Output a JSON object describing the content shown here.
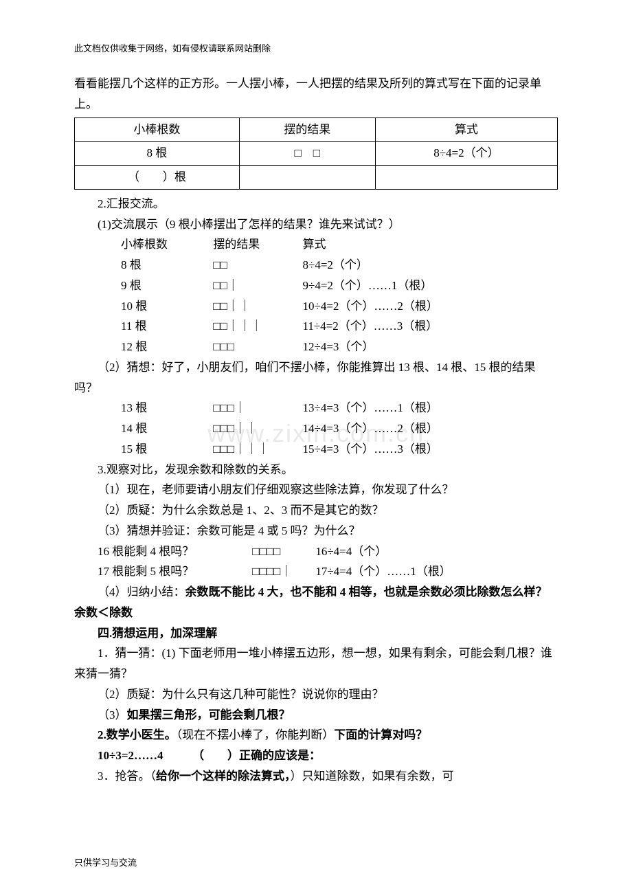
{
  "header_note": "此文档仅供收集于网络，如有侵权请联系网站删除",
  "footer_note": "只供学习与交流",
  "watermark": "www.zixin.com.cn",
  "intro_lines": [
    "看看能摆几个这样的正方形。一人摆小棒，一人把摆的结果及所列的算式写在下面的记录单上。"
  ],
  "record_table": {
    "headers": [
      "小棒根数",
      "摆的结果",
      "算式"
    ],
    "rows": [
      [
        "8 根",
        "□　□",
        "8÷4=2（个）"
      ],
      [
        "（　　）根",
        "",
        ""
      ]
    ]
  },
  "sec2_title": "2.汇报交流。",
  "sec2_sub1": "(1)交流展示（9 根小棒摆出了怎样的结果？谁先来试试？）",
  "list_header": {
    "c1": "小棒根数",
    "c2": "摆的结果",
    "c3": "算式"
  },
  "list1": [
    {
      "sticks": "8 根",
      "shape": "□□",
      "expr": "8÷4=2（个）"
    },
    {
      "sticks": "9 根",
      "shape": "□□｜",
      "expr": "9÷4=2（个）……1（根）"
    },
    {
      "sticks": "10 根",
      "shape": "□□｜｜",
      "expr": "10÷4=2（个）……2（根）"
    },
    {
      "sticks": "11 根",
      "shape": "□□｜｜｜",
      "expr": "11÷4=2（个）……3（根）"
    },
    {
      "sticks": "12 根",
      "shape": "□□□",
      "expr": "12÷4=3（个）"
    }
  ],
  "guess_prompt": "（2）猜想：好了，小朋友们，咱们不摆小棒，你能推算出 13 根、14 根、15 根的结果吗？",
  "list2": [
    {
      "sticks": "13 根",
      "shape": "□□□｜",
      "expr": "13÷4=3（个）……1（根）"
    },
    {
      "sticks": "14 根",
      "shape": "□□□｜｜",
      "expr": "14÷4=3（个）……2（根）"
    },
    {
      "sticks": "15 根",
      "shape": "□□□｜｜｜",
      "expr": "15÷4=3（个）……3（根）"
    }
  ],
  "sec3_title": "3.观察对比，发现余数和除数的关系。",
  "sec3_q1": "（1）现在，老师要请小朋友们仔细观察这些除法算，你发现了什么？",
  "sec3_q2": "（2）质疑：为什么余数总是 1、2、3 而不是其它的数？",
  "sec3_q3": "（3）猜想并验证：余数可能是 4 或 5 吗？为什么？",
  "sec3_r1": "16 根能剩 4 根吗？　　　　　□□□□　　　16÷4=4（个）",
  "sec3_r2": "17 根能剩 5 根吗？　　　　　□□□□｜　　17÷4=4（个）……1（根）",
  "sec3_sum_a": "（4）归纳小结：",
  "sec3_sum_b": "余数既不能比 4 大，也不能和 4 相等，也就是余数必须比除数怎么样？",
  "sec3_sum_c": "余数＜除数",
  "sec4_title": "四.猜想运用，加深理解",
  "sec4_p1": "1．猜一猜：(1) 下面老师用一堆小棒摆五边形，想一想，如果有剩余，可能会剩几根？谁来猜一猜？",
  "sec4_p2": "（2）质疑：为什么只有这几种可能性？说说你的理由？",
  "sec4_p3_a": "（3）",
  "sec4_p3_b": "如果摆三角形，可能会剩几根？",
  "sec4_p4_a": "2.数学小医生。",
  "sec4_p4_b": "（现在不摆小棒了，你能判断）",
  "sec4_p4_c": "下面的计算对吗？",
  "sec4_p5_a": "10÷3=2……4",
  "sec4_p5_b": "（　　）正确的应该是：",
  "sec4_p6_a": "3．抢答。（",
  "sec4_p6_b": "给你一个这样的除法算式，",
  "sec4_p6_c": "）只知道除数，如果有余数，可"
}
